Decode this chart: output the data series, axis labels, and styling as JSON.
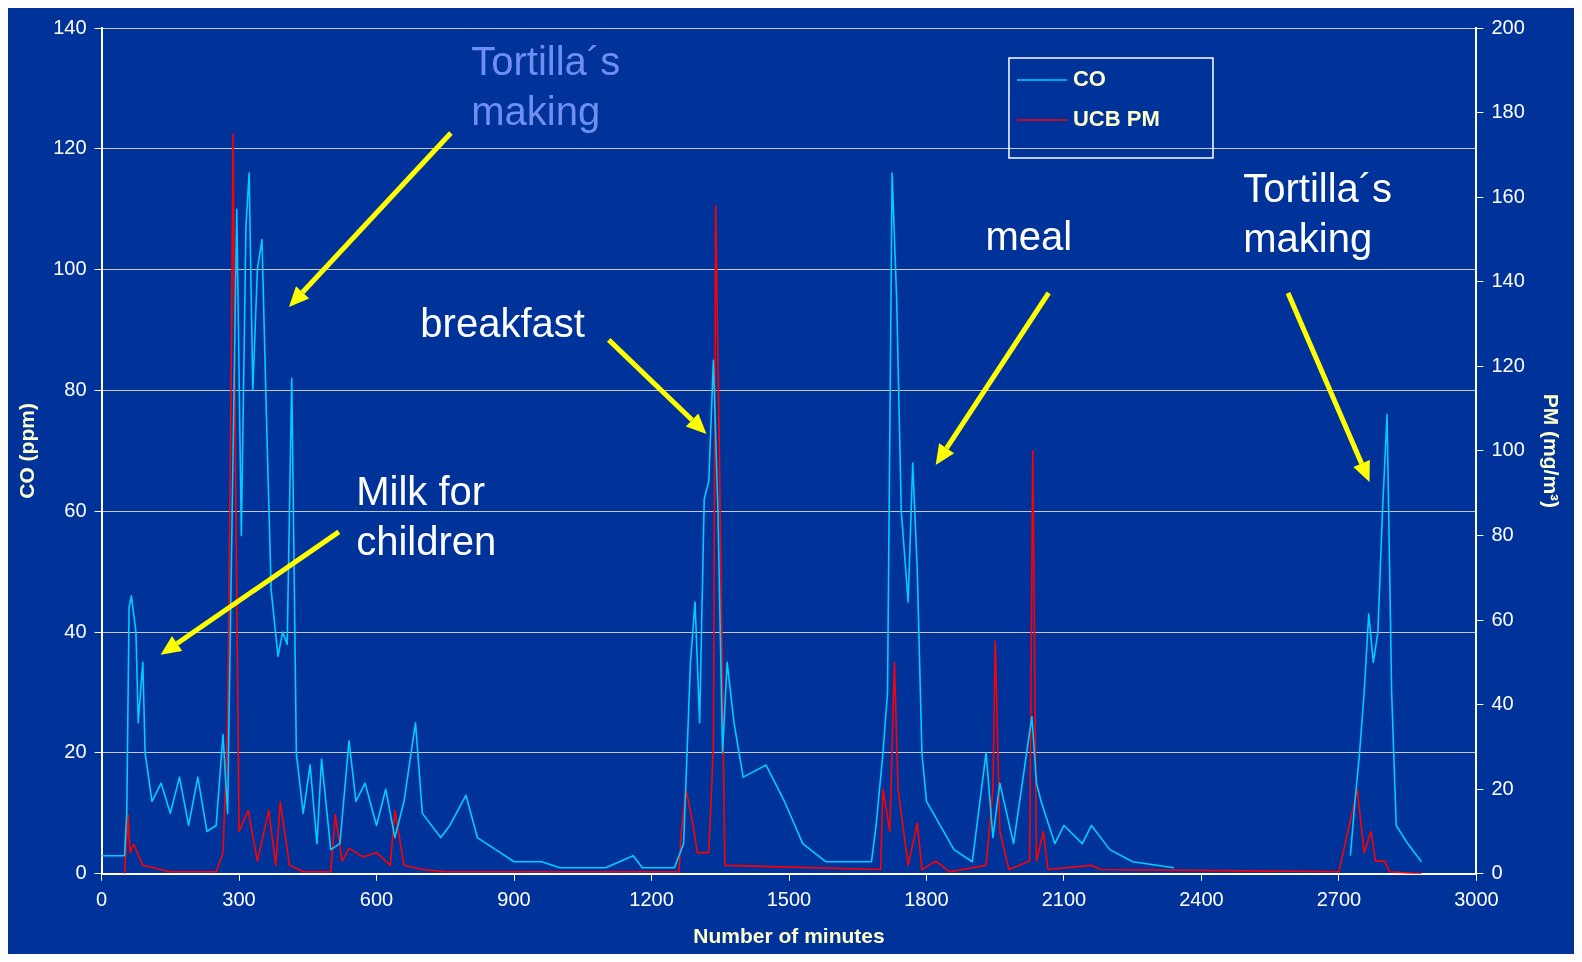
{
  "chart_data": {
    "type": "line",
    "xlabel": "Number of minutes",
    "ylabel": "CO (ppm)",
    "y2label": "PM (mg/m³)",
    "xlim": [
      0,
      3000
    ],
    "xticks": [
      0,
      300,
      600,
      900,
      1200,
      1500,
      1800,
      2100,
      2400,
      2700,
      3000
    ],
    "ylim": [
      0,
      140
    ],
    "yticks": [
      0,
      20,
      40,
      60,
      80,
      100,
      120,
      140
    ],
    "y2lim": [
      0,
      200
    ],
    "y2ticks": [
      0,
      20,
      40,
      60,
      80,
      100,
      120,
      140,
      160,
      180,
      200
    ],
    "grid": "y",
    "legend": "top right",
    "marker": "none",
    "line_style": "solid",
    "series": [
      {
        "name": "CO",
        "color": "#00ccff",
        "x": [
          0,
          50,
          55,
          60,
          65,
          75,
          80,
          90,
          95,
          110,
          130,
          150,
          170,
          190,
          210,
          230,
          250,
          265,
          275,
          285,
          295,
          305,
          315,
          322,
          330,
          340,
          350,
          360,
          370,
          385,
          395,
          405,
          415,
          425,
          440,
          455,
          470,
          480,
          500,
          520,
          540,
          555,
          575,
          600,
          620,
          640,
          660,
          685,
          700,
          740,
          760,
          795,
          820,
          860,
          900,
          960,
          1000,
          1100,
          1160,
          1180,
          1200,
          1250,
          1270,
          1285,
          1295,
          1305,
          1315,
          1325,
          1335,
          1345,
          1355,
          1365,
          1380,
          1400,
          1450,
          1490,
          1530,
          1580,
          1680,
          1690,
          1705,
          1715,
          1725,
          1735,
          1745,
          1760,
          1770,
          1780,
          1790,
          1800,
          1830,
          1860,
          1900,
          1930,
          1945,
          1960,
          1990,
          2030,
          2040,
          2050,
          2080,
          2100,
          2140,
          2160,
          2200,
          2250,
          2340,
          2500,
          2725,
          2735,
          2745,
          2755,
          2765,
          2775,
          2785,
          2795,
          2805,
          2815,
          2825,
          2850,
          2880
        ],
        "values": [
          3,
          3,
          10,
          44,
          46,
          40,
          25,
          35,
          20,
          12,
          15,
          10,
          16,
          8,
          16,
          7,
          8,
          23,
          10,
          60,
          110,
          56,
          107,
          116,
          80,
          100,
          105,
          75,
          47,
          36,
          40,
          38,
          82,
          20,
          10,
          18,
          5,
          19,
          4,
          5,
          22,
          12,
          15,
          8,
          14,
          6,
          12,
          25,
          10,
          6,
          8,
          13,
          6,
          4,
          2,
          2,
          1,
          1,
          3,
          1,
          1,
          1,
          5,
          35,
          45,
          25,
          62,
          65,
          85,
          60,
          20,
          35,
          25,
          16,
          18,
          12,
          5,
          2,
          2,
          8,
          20,
          30,
          116,
          95,
          60,
          45,
          68,
          50,
          20,
          12,
          8,
          4,
          2,
          20,
          6,
          15,
          5,
          26,
          15,
          12,
          5,
          8,
          5,
          8,
          4,
          2,
          1,
          null,
          3,
          12,
          20,
          30,
          43,
          35,
          40,
          60,
          76,
          30,
          8,
          5,
          2
        ]
      },
      {
        "name": "UCB PM",
        "color": "#ff0000",
        "axis": "y2",
        "x": [
          50,
          58,
          62,
          70,
          90,
          150,
          250,
          265,
          275,
          283,
          287,
          292,
          300,
          320,
          340,
          365,
          380,
          390,
          410,
          440,
          500,
          510,
          525,
          540,
          570,
          600,
          630,
          640,
          660,
          700,
          750,
          1260,
          1265,
          1275,
          1290,
          1300,
          1325,
          1335,
          1340,
          1348,
          1360,
          1700,
          1705,
          1720,
          1730,
          1738,
          1760,
          1780,
          1790,
          1820,
          1850,
          1930,
          1945,
          1950,
          1960,
          1980,
          2025,
          2032,
          2040,
          2055,
          2065,
          2160,
          2180,
          2700,
          2740,
          2755,
          2770,
          2780,
          2800,
          2810,
          2880
        ],
        "values": [
          0,
          14,
          5,
          7,
          2,
          0.5,
          0.5,
          5,
          35,
          120,
          175,
          100,
          10,
          15,
          3,
          15,
          2,
          17,
          2,
          0.5,
          0.5,
          14,
          3,
          6,
          4,
          5,
          2,
          15,
          2,
          1,
          0.5,
          0.5,
          10,
          20,
          12,
          5,
          5,
          30,
          158,
          100,
          2,
          1,
          20,
          10,
          50,
          20,
          2,
          12,
          1,
          3,
          0.5,
          2,
          20,
          55,
          10,
          1,
          3,
          100,
          3,
          10,
          1,
          2,
          1,
          0.5,
          20,
          5,
          10,
          3,
          3,
          0.5,
          0
        ]
      }
    ],
    "annotations": [
      "Milk for children",
      "Tortilla´s making",
      "breakfast",
      "meal",
      "Tortilla´s making"
    ]
  }
}
